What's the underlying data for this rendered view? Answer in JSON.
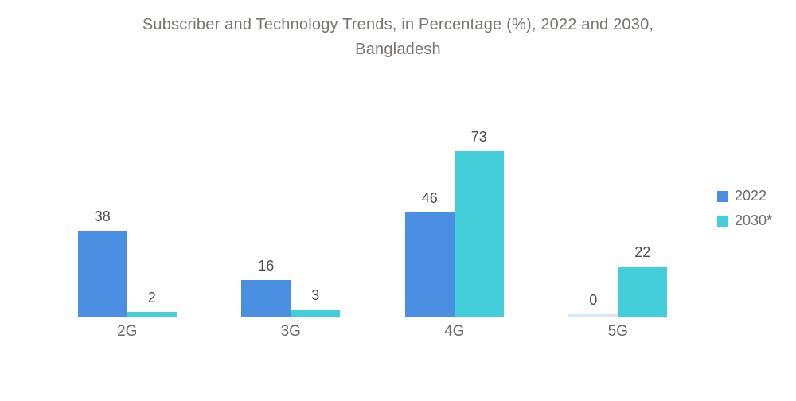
{
  "title_lines": [
    "Subscriber and Technology Trends, in Percentage (%), 2022 and 2030,",
    "Bangladesh"
  ],
  "chart_data": {
    "type": "bar",
    "title": "Subscriber and Technology Trends, in Percentage (%), 2022 and 2030, Bangladesh",
    "categories": [
      "2G",
      "3G",
      "4G",
      "5G"
    ],
    "series": [
      {
        "name": "2022",
        "color": "#4A8FE2",
        "values": [
          38,
          16,
          46,
          0
        ]
      },
      {
        "name": "2030*",
        "color": "#43CEDA",
        "values": [
          2,
          3,
          73,
          22
        ]
      }
    ],
    "xlabel": "",
    "ylabel": "",
    "ylim": [
      0,
      80
    ],
    "grid": false,
    "axes_visible": false,
    "value_labels": true,
    "legend_position": "right",
    "colors": {
      "title_text": "#7b7672",
      "value_label_text": "#4d4d4d",
      "category_label_text": "#6b6b6b",
      "legend_text": "#6b6b6b",
      "zero_bar": "#D9E6F5"
    }
  }
}
